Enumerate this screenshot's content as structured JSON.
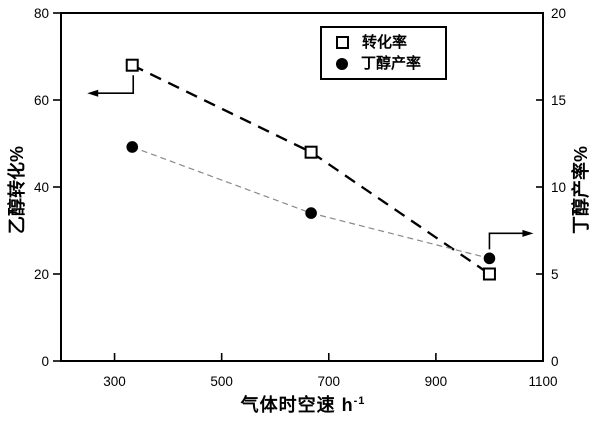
{
  "figure": {
    "background": "#ffffff",
    "axis_color": "#000000"
  },
  "chart_data": {
    "type": "line",
    "title": "",
    "x": [
      333,
      667,
      1000
    ],
    "series": [
      {
        "name": "转化率",
        "axis": "left",
        "marker": "open-square",
        "line_style": "long-dash",
        "color": "#000000",
        "values": [
          68,
          48,
          20
        ]
      },
      {
        "name": "丁醇产率",
        "axis": "right",
        "marker": "filled-circle",
        "line_style": "short-dash",
        "color": "#8a8a8a",
        "values": [
          12.3,
          8.5,
          5.9
        ]
      }
    ],
    "xlabel_base": "气体时空速 h",
    "xlabel_sup": "-1",
    "ylabel_left": "乙醇转化%",
    "ylabel_right": "丁醇产率%",
    "xlim": [
      200,
      1100
    ],
    "xticks": [
      300,
      500,
      700,
      900,
      1100
    ],
    "ylim_left": [
      0,
      80
    ],
    "yticks_left": [
      0,
      20,
      40,
      60,
      80
    ],
    "ylim_right": [
      0,
      20
    ],
    "yticks_right": [
      0,
      5,
      10,
      15,
      20
    ],
    "grid": false,
    "legend_position": "top-center",
    "annotations": [
      {
        "type": "arrow",
        "direction": "left",
        "attached_to": "first point of 转化率",
        "meaning": "series read on left axis"
      },
      {
        "type": "arrow",
        "direction": "right",
        "attached_to": "last point of 丁醇产率",
        "meaning": "series read on right axis"
      }
    ]
  }
}
